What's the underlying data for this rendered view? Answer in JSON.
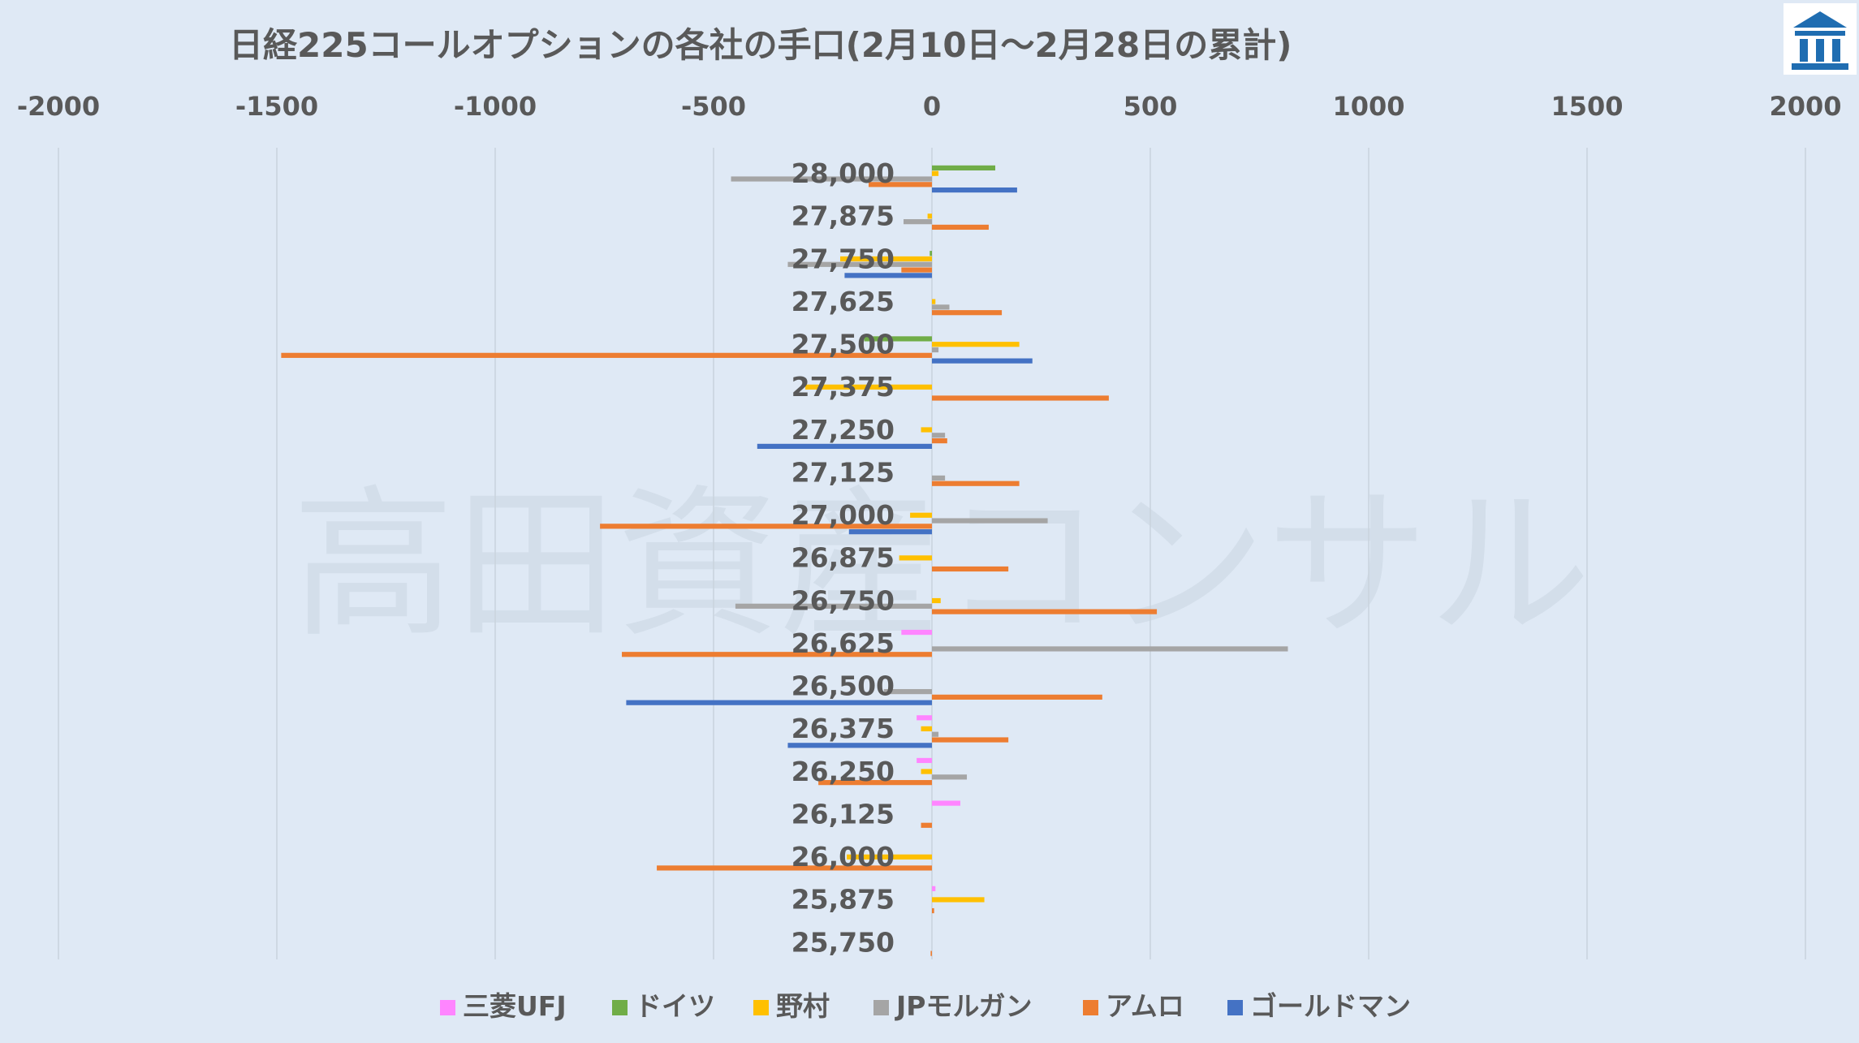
{
  "logo": {
    "icon": "building-logo-icon",
    "color": "#1f6db1"
  },
  "watermark": "高田資産コンサル",
  "chart_data": {
    "type": "bar",
    "orientation": "horizontal",
    "title": "日経225コールオプションの各社の手口(2月10日～2月28日の累計)",
    "xlim": [
      -2000,
      2000
    ],
    "xticks": [
      -2000,
      -1500,
      -1000,
      -500,
      0,
      500,
      1000,
      1500,
      2000
    ],
    "xaxis_position": "top",
    "grid": "vertical",
    "legend_position": "bottom",
    "categories": [
      "28,000",
      "27,875",
      "27,750",
      "27,625",
      "27,500",
      "27,375",
      "27,250",
      "27,125",
      "27,000",
      "26,875",
      "26,750",
      "26,625",
      "26,500",
      "26,375",
      "26,250",
      "26,125",
      "26,000",
      "25,875",
      "25,750"
    ],
    "series": [
      {
        "name": "三菱UFJ",
        "color": "#ff85ff",
        "values": [
          0,
          0,
          0,
          0,
          0,
          0,
          0,
          0,
          0,
          0,
          0,
          -70,
          0,
          -35,
          -35,
          65,
          0,
          8,
          0
        ]
      },
      {
        "name": "ドイツ",
        "color": "#70ad47",
        "values": [
          145,
          0,
          -5,
          0,
          -155,
          0,
          0,
          0,
          0,
          0,
          0,
          0,
          0,
          0,
          0,
          0,
          0,
          0,
          0
        ]
      },
      {
        "name": "野村",
        "color": "#ffc000",
        "values": [
          15,
          -10,
          -210,
          8,
          200,
          -290,
          -25,
          0,
          -50,
          -75,
          20,
          0,
          0,
          -25,
          -25,
          0,
          -195,
          120,
          0
        ]
      },
      {
        "name": "JPモルガン",
        "color": "#a5a5a5",
        "values": [
          -460,
          -65,
          -330,
          40,
          15,
          0,
          30,
          30,
          265,
          0,
          -450,
          815,
          -110,
          15,
          80,
          0,
          0,
          0,
          0
        ]
      },
      {
        "name": "アムロ",
        "color": "#ed7d31",
        "values": [
          -145,
          130,
          -70,
          160,
          -1490,
          405,
          35,
          200,
          -760,
          175,
          515,
          -710,
          390,
          175,
          -260,
          -25,
          -630,
          5,
          -3
        ]
      },
      {
        "name": "ゴールドマン",
        "color": "#4472c4",
        "values": [
          195,
          0,
          -200,
          0,
          230,
          0,
          -400,
          0,
          -190,
          0,
          0,
          0,
          -700,
          -330,
          0,
          0,
          0,
          0,
          0
        ]
      }
    ]
  }
}
